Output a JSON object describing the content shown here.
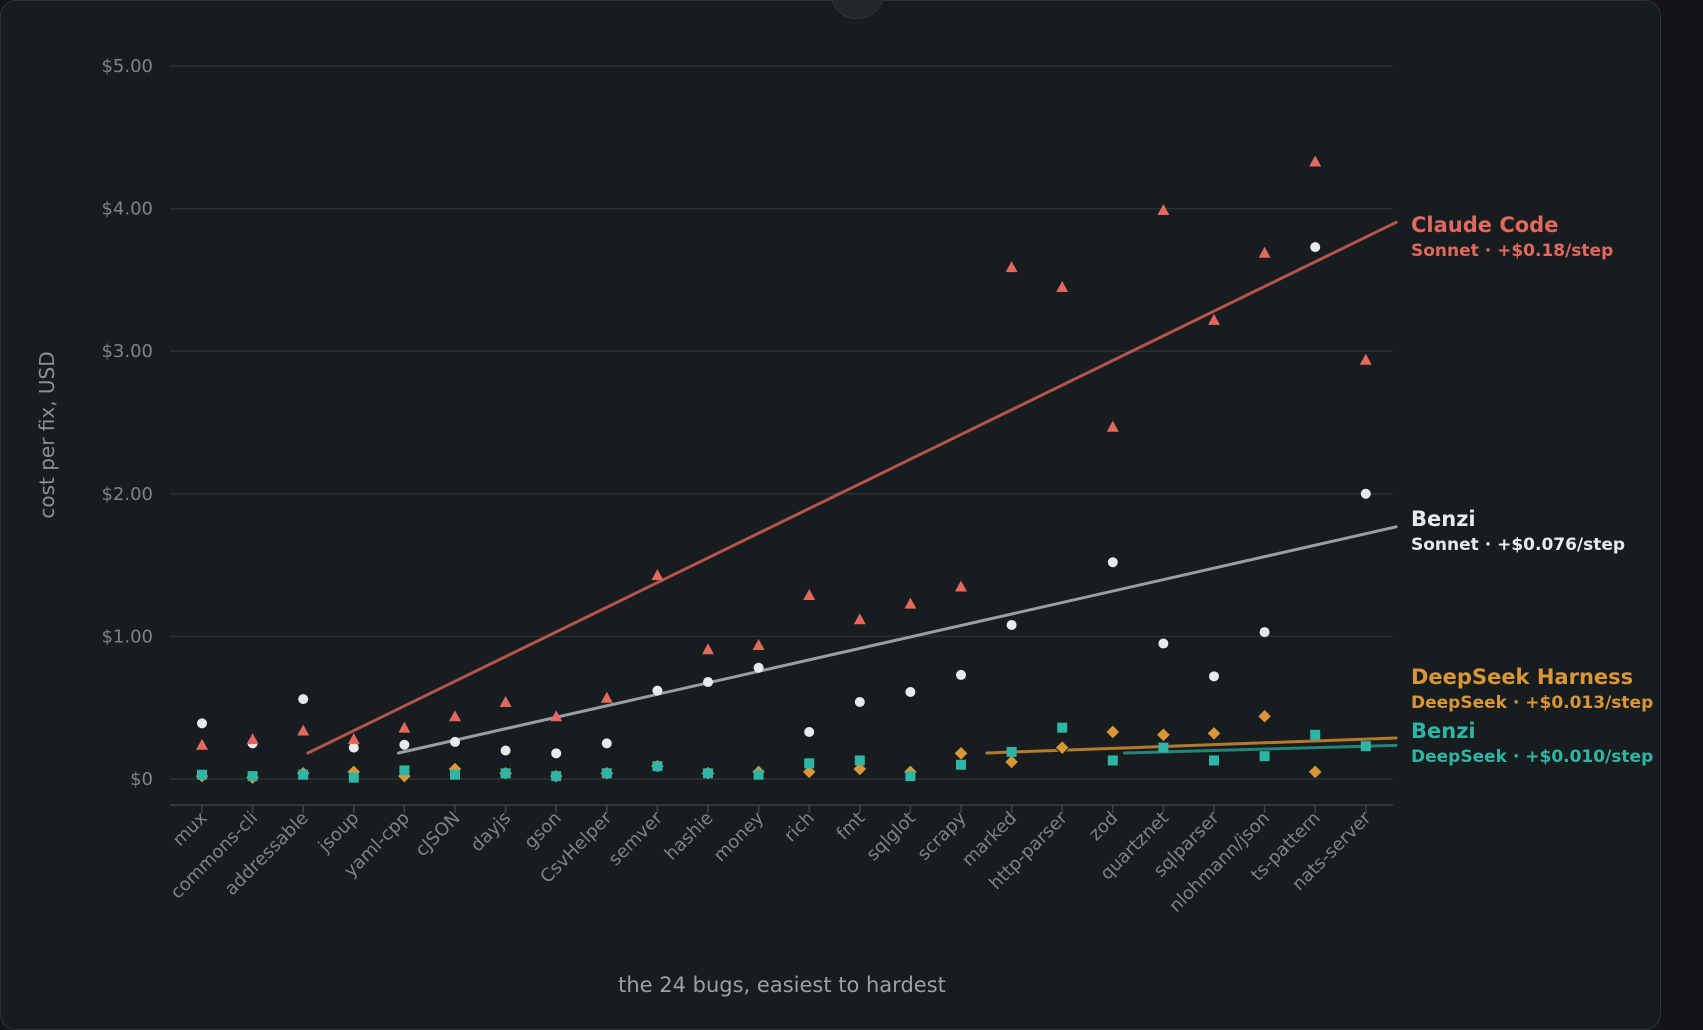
{
  "chart_data": {
    "type": "scatter",
    "xlabel": "the 24 bugs, easiest to hardest",
    "ylabel": "cost per fix, USD",
    "ylim": [
      0,
      5
    ],
    "yticks": [
      0,
      1,
      2,
      3,
      4,
      5
    ],
    "ytick_labels": [
      "$0",
      "$1.00",
      "$2.00",
      "$3.00",
      "$4.00",
      "$5.00"
    ],
    "grid": true,
    "categories": [
      "mux",
      "commons-cli",
      "addressable",
      "jsoup",
      "yaml-cpp",
      "cJSON",
      "dayjs",
      "gson",
      "CsvHelper",
      "semver",
      "hashie",
      "money",
      "rich",
      "fmt",
      "sqlglot",
      "scrapy",
      "marked",
      "http-parser",
      "zod",
      "quartznet",
      "sqlparser",
      "nlohmann/json",
      "ts-pattern",
      "nats-server"
    ],
    "series": [
      {
        "name": "Claude Code",
        "subtitle": "Sonnet · +$0.18/step",
        "color": "#e0685c",
        "line_color": "#b4544c",
        "marker": "triangle",
        "values": [
          0.24,
          0.28,
          0.34,
          0.28,
          0.36,
          0.44,
          0.54,
          0.44,
          0.57,
          1.43,
          0.91,
          0.94,
          1.29,
          1.12,
          1.23,
          1.35,
          3.59,
          3.45,
          2.47,
          3.99,
          3.22,
          3.69,
          4.33,
          2.94
        ],
        "trend": [
          -0.18,
          3.8
        ]
      },
      {
        "name": "Benzi",
        "subtitle": "Sonnet · +$0.076/step",
        "color": "#e8eaec",
        "line_color": "#9a9ea2",
        "marker": "circle",
        "values": [
          0.39,
          0.25,
          0.56,
          0.22,
          0.24,
          0.26,
          0.2,
          0.18,
          0.25,
          0.62,
          0.68,
          0.78,
          0.33,
          0.54,
          0.61,
          0.73,
          1.08,
          null,
          1.52,
          0.95,
          0.72,
          1.03,
          3.73,
          2.0
        ],
        "trend": [
          -0.13,
          1.72
        ]
      },
      {
        "name": "DeepSeek Harness",
        "subtitle": "DeepSeek · +$0.013/step",
        "color": "#d99638",
        "line_color": "#b3792c",
        "marker": "diamond",
        "values": [
          0.02,
          0.01,
          0.04,
          0.05,
          0.02,
          0.07,
          0.04,
          0.02,
          0.04,
          0.09,
          0.04,
          0.05,
          0.05,
          0.07,
          0.05,
          0.18,
          0.12,
          0.22,
          0.33,
          0.31,
          0.32,
          0.44,
          0.05,
          null
        ],
        "trend": [
          -0.02,
          0.28
        ]
      },
      {
        "name": "Benzi",
        "subtitle": "DeepSeek · +$0.010/step",
        "color": "#2fb5a5",
        "line_color": "#23857a",
        "marker": "square",
        "values": [
          0.03,
          0.02,
          0.03,
          0.01,
          0.06,
          0.03,
          0.04,
          0.02,
          0.04,
          0.09,
          0.04,
          0.03,
          0.11,
          0.13,
          0.02,
          0.1,
          0.19,
          0.36,
          0.13,
          0.22,
          0.13,
          0.16,
          0.31,
          0.23
        ],
        "trend": [
          0.0,
          0.23
        ]
      }
    ]
  }
}
